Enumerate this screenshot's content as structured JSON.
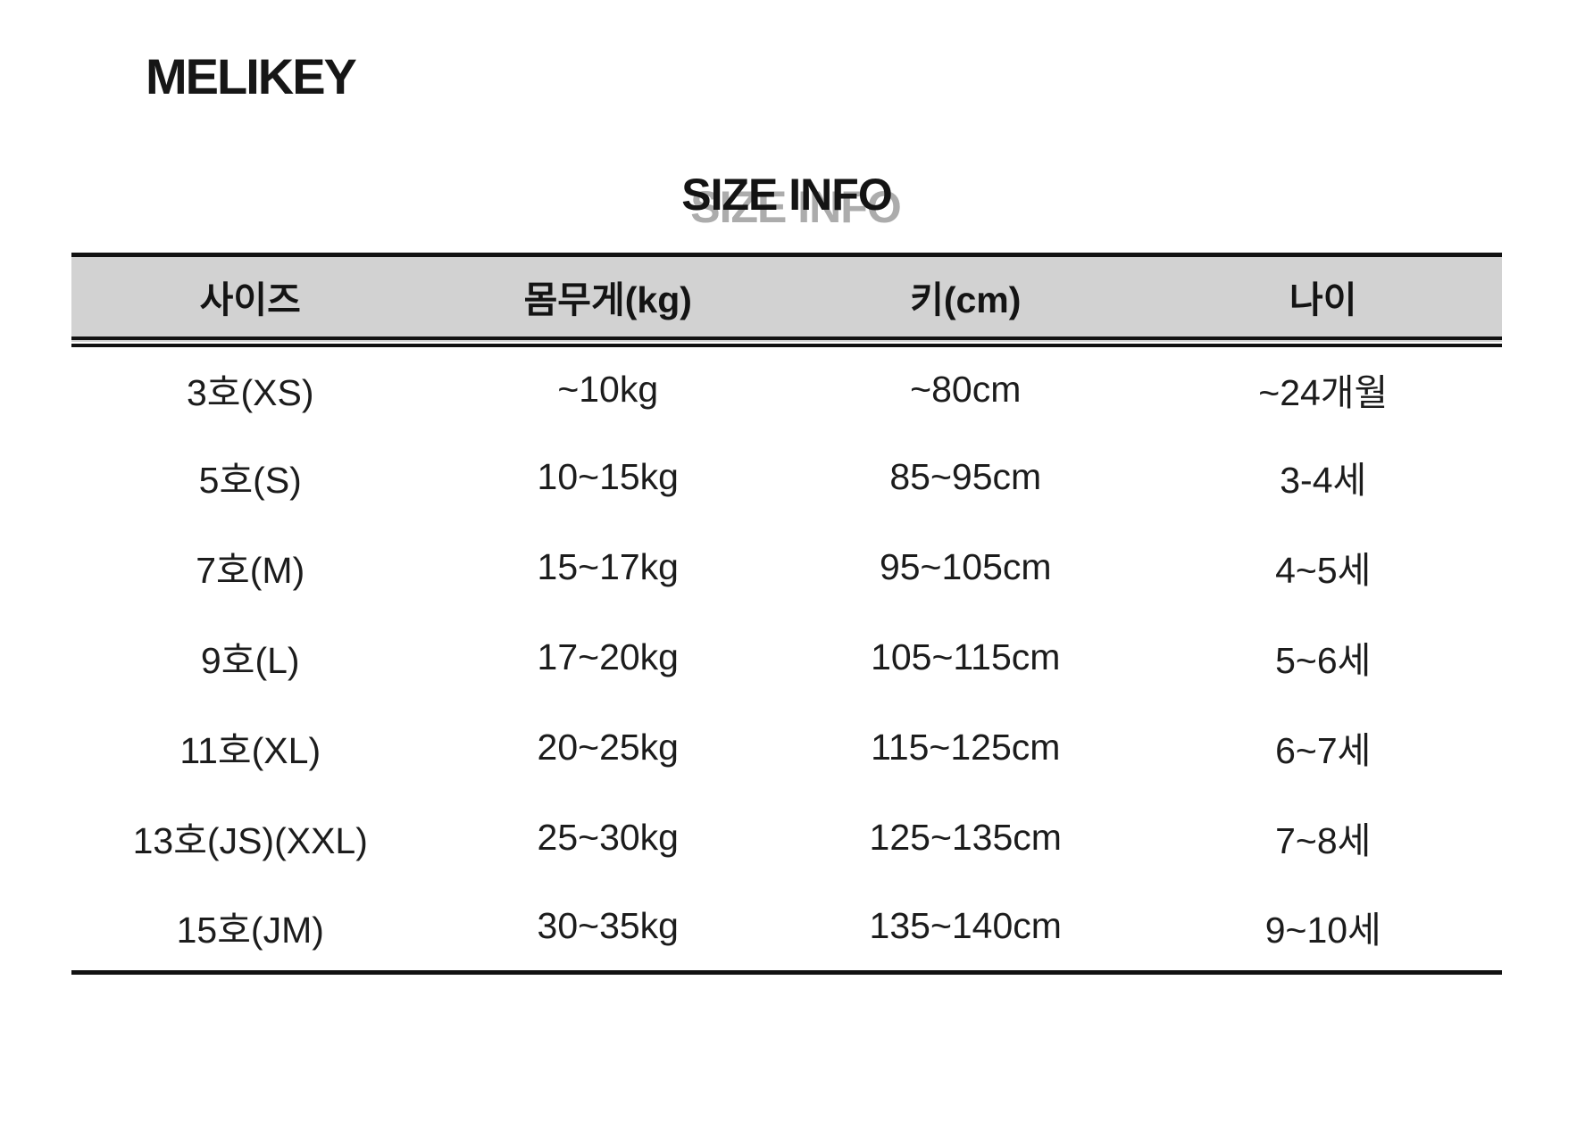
{
  "brand": "MELIKEY",
  "chart_data": {
    "type": "table",
    "title": "SIZE INFO",
    "columns": [
      "사이즈",
      "몸무게(kg)",
      "키(cm)",
      "나이"
    ],
    "rows": [
      [
        "3호(XS)",
        "~10kg",
        "~80cm",
        "~24개월"
      ],
      [
        "5호(S)",
        "10~15kg",
        "85~95cm",
        "3-4세"
      ],
      [
        "7호(M)",
        "15~17kg",
        "95~105cm",
        "4~5세"
      ],
      [
        "9호(L)",
        "17~20kg",
        "105~115cm",
        "5~6세"
      ],
      [
        "11호(XL)",
        "20~25kg",
        "115~125cm",
        "6~7세"
      ],
      [
        "13호(JS)(XXL)",
        "25~30kg",
        "125~135cm",
        "7~8세"
      ],
      [
        "15호(JM)",
        "30~35kg",
        "135~140cm",
        "9~10세"
      ]
    ]
  },
  "colors": {
    "header_bg": "#d2d2d2",
    "border": "#121212",
    "text": "#1c1c1c",
    "title_shadow": "#acacac",
    "page_bg": "#ffffff"
  }
}
